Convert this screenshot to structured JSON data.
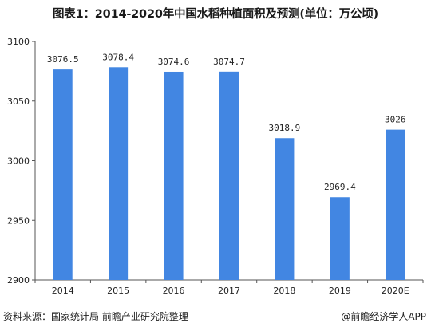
{
  "title": "图表1：2014-2020年中国水稻种植面积及预测(单位：万公顷)",
  "source": "资料来源：国家统计局 前瞻产业研究院整理",
  "brand": "@前瞻经济学人APP",
  "colors": {
    "bar": "#4286E2",
    "axis": "#555555",
    "text": "#222222"
  },
  "chart_data": {
    "type": "bar",
    "title": "图表1：2014-2020年中国水稻种植面积及预测(单位：万公顷)",
    "categories": [
      "2014",
      "2015",
      "2016",
      "2017",
      "2018",
      "2019",
      "2020E"
    ],
    "values": [
      3076.5,
      3078.4,
      3074.6,
      3074.7,
      3018.9,
      2969.4,
      3026
    ],
    "data_labels": [
      "3076.5",
      "3078.4",
      "3074.6",
      "3074.7",
      "3018.9",
      "2969.4",
      "3026"
    ],
    "ylim": [
      2900,
      3100
    ],
    "yticks": [
      2900,
      2950,
      3000,
      3050,
      3100
    ],
    "grid": false,
    "legend": "none"
  }
}
